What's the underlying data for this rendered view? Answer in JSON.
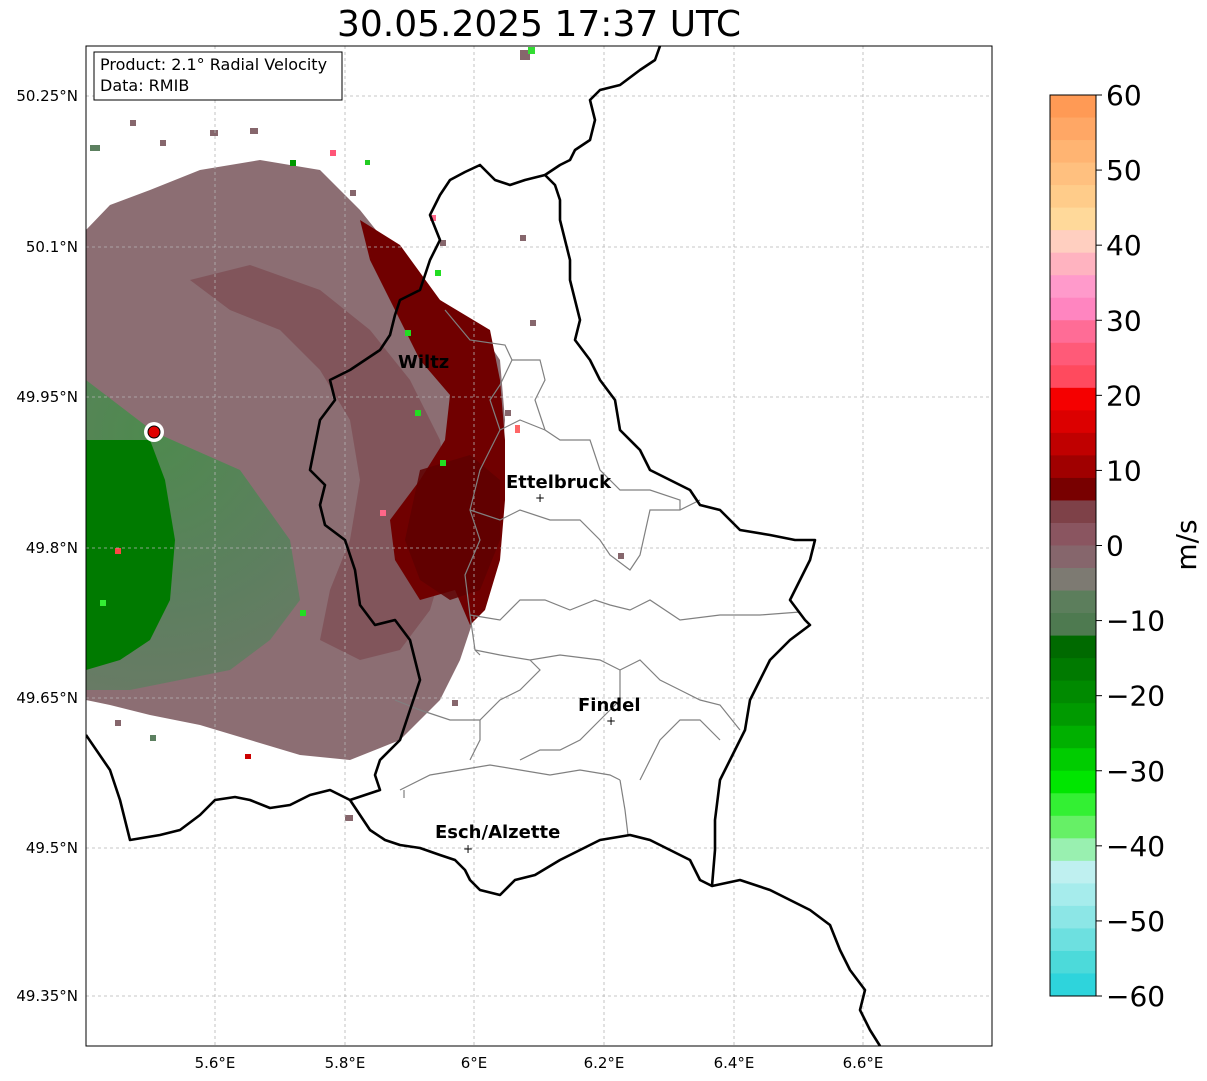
{
  "title": "30.05.2025 17:37 UTC",
  "info_box": {
    "product": "Product: 2.1° Radial Velocity",
    "data": "Data: RMIB"
  },
  "chart_data": {
    "type": "heatmap",
    "title": "30.05.2025 17:37 UTC",
    "xlim": [
      5.4,
      6.8
    ],
    "ylim": [
      49.3,
      50.3
    ],
    "x_ticks": [
      5.6,
      5.8,
      6.0,
      6.2,
      6.4,
      6.6
    ],
    "x_tick_labels": [
      "5.6°E",
      "5.8°E",
      "6°E",
      "6.2°E",
      "6.4°E",
      "6.6°E"
    ],
    "y_ticks": [
      49.35,
      49.5,
      49.65,
      49.8,
      49.95,
      50.1,
      50.25
    ],
    "y_tick_labels": [
      "49.35°N",
      "49.5°N",
      "49.65°N",
      "49.8°N",
      "49.95°N",
      "50.1°N",
      "50.25°N"
    ],
    "grid": true,
    "radar_site": {
      "lon": 5.51,
      "lat": 49.915
    },
    "cities": [
      {
        "name": "Wiltz",
        "lon": 5.93,
        "lat": 49.968
      },
      {
        "name": "Ettelbruck",
        "lon": 6.1,
        "lat": 49.85
      },
      {
        "name": "Findel",
        "lon": 6.21,
        "lat": 49.628
      },
      {
        "name": "Esch/Alzette",
        "lon": 5.99,
        "lat": 49.5
      }
    ],
    "colorbar": {
      "label": "m/s",
      "min": -60,
      "max": 60,
      "ticks": [
        60,
        50,
        40,
        30,
        20,
        10,
        0,
        -10,
        -20,
        -30,
        -40,
        -50,
        -60
      ],
      "tick_labels": [
        "60",
        "50",
        "40",
        "30",
        "20",
        "10",
        "0",
        "−10",
        "−20",
        "−30",
        "−40",
        "−50",
        "−60"
      ]
    }
  },
  "colors": {
    "strong_green": "#007a00",
    "muted_green": "#5c8060",
    "muted_mauve": "#86666c",
    "dark_red": "#700000",
    "border": "#000000",
    "canton_border": "#808080"
  }
}
